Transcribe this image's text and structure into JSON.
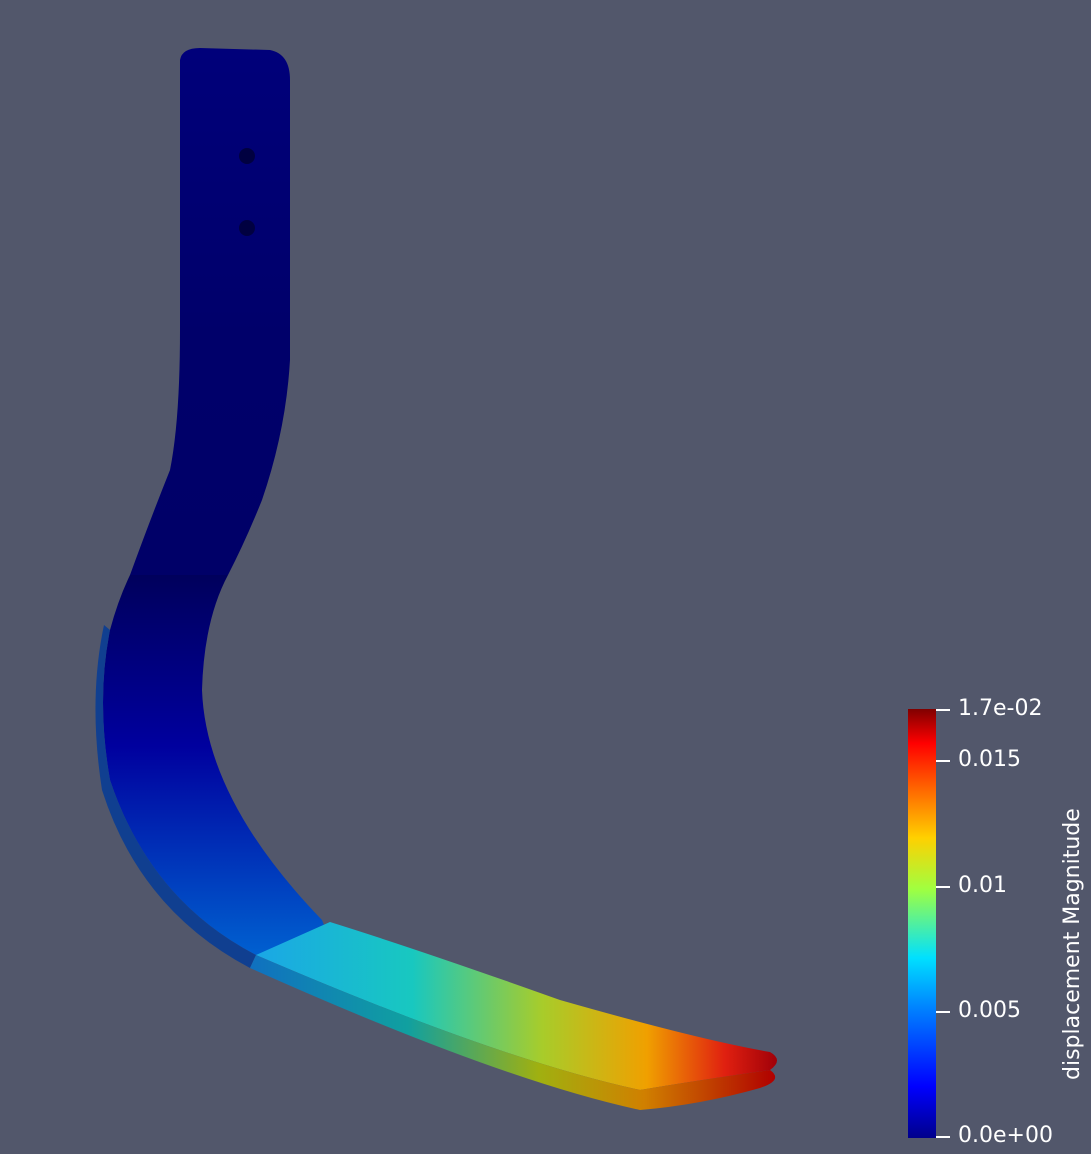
{
  "scene": {
    "background_color": "#52576b",
    "object": "deformed-bent-bar",
    "color_scale": "blue-to-red"
  },
  "colorbar": {
    "title": "displacement Magnitude",
    "range": [
      0,
      0.017
    ],
    "labels": [
      "1.7e-02",
      "0.015",
      "0.01",
      "0.005",
      "0.0e+00"
    ],
    "label_values": [
      0.017,
      0.015,
      0.01,
      0.005,
      0
    ]
  }
}
